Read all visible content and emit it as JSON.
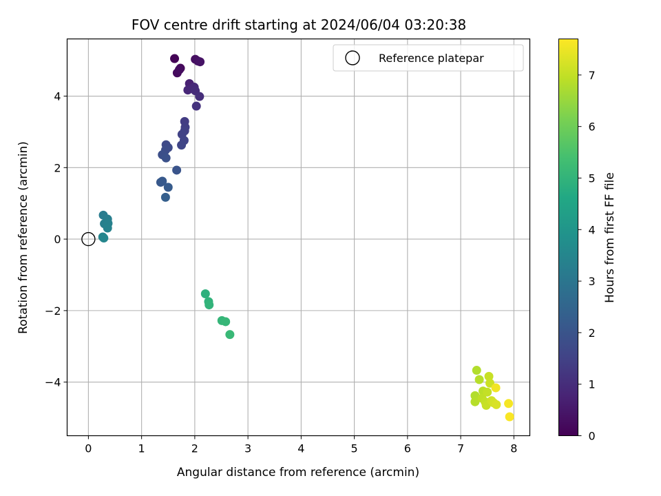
{
  "chart_data": {
    "type": "scatter",
    "title": "FOV centre drift starting at 2024/06/04 03:20:38",
    "xlabel": "Angular distance from reference (arcmin)",
    "ylabel": "Rotation from reference (arcmin)",
    "xlim": [
      -0.4,
      8.3
    ],
    "ylim": [
      -5.5,
      5.6
    ],
    "xticks": [
      0,
      1,
      2,
      3,
      4,
      5,
      6,
      7,
      8
    ],
    "yticks": [
      -4,
      -2,
      0,
      2,
      4
    ],
    "xtick_labels": [
      "0",
      "1",
      "2",
      "3",
      "4",
      "5",
      "6",
      "7",
      "8"
    ],
    "ytick_labels": [
      "−4",
      "−2",
      "0",
      "2",
      "4"
    ],
    "grid": true,
    "legend": {
      "position": "top-right",
      "entries": [
        {
          "label": "Reference platepar",
          "marker": "open-circle"
        }
      ]
    },
    "reference_point": {
      "x": 0,
      "y": 0
    },
    "colorbar": {
      "label": "Hours from first FF file",
      "colormap": "viridis",
      "range": [
        0,
        7.7
      ],
      "ticks": [
        0,
        1,
        2,
        3,
        4,
        5,
        6,
        7
      ],
      "tick_labels": [
        "0",
        "1",
        "2",
        "3",
        "4",
        "5",
        "6",
        "7"
      ]
    },
    "points": [
      {
        "x": 1.62,
        "y": 5.05,
        "hours": 0.05
      },
      {
        "x": 1.73,
        "y": 4.78,
        "hours": 0.15
      },
      {
        "x": 1.67,
        "y": 4.65,
        "hours": 0.2
      },
      {
        "x": 1.71,
        "y": 4.74,
        "hours": 0.25
      },
      {
        "x": 2.01,
        "y": 5.03,
        "hours": 0.3
      },
      {
        "x": 2.06,
        "y": 4.98,
        "hours": 0.35
      },
      {
        "x": 2.1,
        "y": 4.96,
        "hours": 0.4
      },
      {
        "x": 1.9,
        "y": 4.35,
        "hours": 0.7
      },
      {
        "x": 1.94,
        "y": 4.22,
        "hours": 0.8
      },
      {
        "x": 1.87,
        "y": 4.17,
        "hours": 0.85
      },
      {
        "x": 1.99,
        "y": 4.25,
        "hours": 0.9
      },
      {
        "x": 2.01,
        "y": 4.15,
        "hours": 0.95
      },
      {
        "x": 2.09,
        "y": 3.99,
        "hours": 1.0
      },
      {
        "x": 2.03,
        "y": 3.72,
        "hours": 1.1
      },
      {
        "x": 1.81,
        "y": 3.29,
        "hours": 1.35
      },
      {
        "x": 1.82,
        "y": 3.13,
        "hours": 1.4
      },
      {
        "x": 1.81,
        "y": 3.03,
        "hours": 1.45
      },
      {
        "x": 1.76,
        "y": 2.93,
        "hours": 1.5
      },
      {
        "x": 1.8,
        "y": 2.76,
        "hours": 1.55
      },
      {
        "x": 1.75,
        "y": 2.63,
        "hours": 1.6
      },
      {
        "x": 1.46,
        "y": 2.64,
        "hours": 1.7
      },
      {
        "x": 1.5,
        "y": 2.56,
        "hours": 1.75
      },
      {
        "x": 1.45,
        "y": 2.49,
        "hours": 1.8
      },
      {
        "x": 1.39,
        "y": 2.36,
        "hours": 1.85
      },
      {
        "x": 1.46,
        "y": 2.27,
        "hours": 1.9
      },
      {
        "x": 1.66,
        "y": 1.93,
        "hours": 2.0
      },
      {
        "x": 1.36,
        "y": 1.59,
        "hours": 2.1
      },
      {
        "x": 1.39,
        "y": 1.62,
        "hours": 2.15
      },
      {
        "x": 1.5,
        "y": 1.45,
        "hours": 2.2
      },
      {
        "x": 1.45,
        "y": 1.17,
        "hours": 2.3
      },
      {
        "x": 0.28,
        "y": 0.67,
        "hours": 3.2
      },
      {
        "x": 0.36,
        "y": 0.56,
        "hours": 3.25
      },
      {
        "x": 0.3,
        "y": 0.43,
        "hours": 3.3
      },
      {
        "x": 0.37,
        "y": 0.44,
        "hours": 3.35
      },
      {
        "x": 0.36,
        "y": 0.31,
        "hours": 3.4
      },
      {
        "x": 0.27,
        "y": 0.06,
        "hours": 3.45
      },
      {
        "x": 0.29,
        "y": 0.03,
        "hours": 3.5
      },
      {
        "x": 2.2,
        "y": -1.53,
        "hours": 4.9
      },
      {
        "x": 2.26,
        "y": -1.75,
        "hours": 4.95
      },
      {
        "x": 2.27,
        "y": -1.84,
        "hours": 5.0
      },
      {
        "x": 2.51,
        "y": -2.28,
        "hours": 5.05
      },
      {
        "x": 2.58,
        "y": -2.31,
        "hours": 5.1
      },
      {
        "x": 2.66,
        "y": -2.67,
        "hours": 5.15
      },
      {
        "x": 7.3,
        "y": -3.67,
        "hours": 6.8
      },
      {
        "x": 7.35,
        "y": -3.93,
        "hours": 6.85
      },
      {
        "x": 7.27,
        "y": -4.38,
        "hours": 6.8
      },
      {
        "x": 7.27,
        "y": -4.55,
        "hours": 6.85
      },
      {
        "x": 7.42,
        "y": -4.25,
        "hours": 6.9
      },
      {
        "x": 7.4,
        "y": -4.45,
        "hours": 6.95
      },
      {
        "x": 7.46,
        "y": -4.55,
        "hours": 7.0
      },
      {
        "x": 7.48,
        "y": -4.65,
        "hours": 7.05
      },
      {
        "x": 7.5,
        "y": -4.28,
        "hours": 7.0
      },
      {
        "x": 7.53,
        "y": -3.84,
        "hours": 7.05
      },
      {
        "x": 7.55,
        "y": -4.03,
        "hours": 7.1
      },
      {
        "x": 7.58,
        "y": -4.52,
        "hours": 7.15
      },
      {
        "x": 7.62,
        "y": -4.58,
        "hours": 7.2
      },
      {
        "x": 7.67,
        "y": -4.63,
        "hours": 7.25
      },
      {
        "x": 7.66,
        "y": -4.16,
        "hours": 7.55
      },
      {
        "x": 7.9,
        "y": -4.6,
        "hours": 7.6
      },
      {
        "x": 7.92,
        "y": -4.97,
        "hours": 7.65
      }
    ]
  }
}
